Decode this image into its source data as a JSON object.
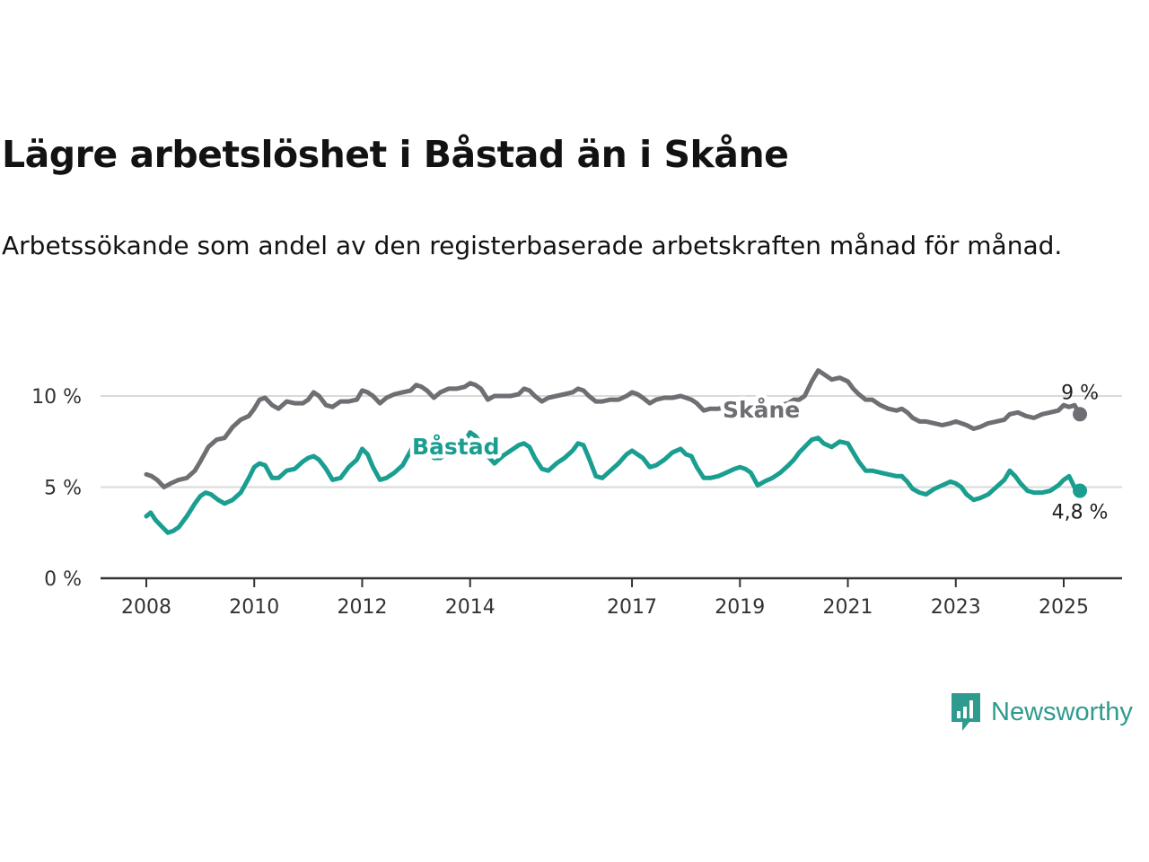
{
  "title": "Lägre arbetslöshet i Båstad än i Skåne",
  "subtitle": "Arbetssökande som andel av den registerbaserade arbetskraften månad för månad.",
  "brand": {
    "name": "Newsworthy",
    "icon": "bar-chart-speech-bubble-icon",
    "color": "#2f9a8e"
  },
  "colors": {
    "skane": "#6e6e73",
    "bastad": "#1a9e90",
    "grid": "#d9d9d9",
    "axis": "#333333"
  },
  "chart_data": {
    "type": "line",
    "title": "Lägre arbetslöshet i Båstad än i Skåne",
    "xlabel": "",
    "ylabel": "",
    "xlim": [
      2008,
      2025.4
    ],
    "ylim": [
      0,
      10
    ],
    "x_ticks": [
      {
        "value": 2008,
        "label": "2008"
      },
      {
        "value": 2010,
        "label": "2010"
      },
      {
        "value": 2012,
        "label": "2012"
      },
      {
        "value": 2014,
        "label": "2014"
      },
      {
        "value": 2017,
        "label": "2017"
      },
      {
        "value": 2019,
        "label": "2019"
      },
      {
        "value": 2021,
        "label": "2021"
      },
      {
        "value": 2023,
        "label": "2023"
      },
      {
        "value": 2025,
        "label": "2025"
      }
    ],
    "y_ticks": [
      {
        "value": 0,
        "label": "0 %"
      },
      {
        "value": 5,
        "label": "5 %"
      },
      {
        "value": 10,
        "label": "10 %"
      }
    ],
    "grid": true,
    "series": [
      {
        "name": "Skåne",
        "end_label": "9 %",
        "points": [
          [
            2008.0,
            5.7
          ],
          [
            2008.1,
            5.6
          ],
          [
            2008.2,
            5.4
          ],
          [
            2008.33,
            5.0
          ],
          [
            2008.45,
            5.2
          ],
          [
            2008.6,
            5.4
          ],
          [
            2008.75,
            5.5
          ],
          [
            2008.9,
            5.9
          ],
          [
            2009.0,
            6.4
          ],
          [
            2009.15,
            7.2
          ],
          [
            2009.3,
            7.6
          ],
          [
            2009.45,
            7.7
          ],
          [
            2009.6,
            8.3
          ],
          [
            2009.75,
            8.7
          ],
          [
            2009.9,
            8.9
          ],
          [
            2010.0,
            9.3
          ],
          [
            2010.1,
            9.8
          ],
          [
            2010.2,
            9.9
          ],
          [
            2010.33,
            9.5
          ],
          [
            2010.45,
            9.3
          ],
          [
            2010.6,
            9.7
          ],
          [
            2010.75,
            9.6
          ],
          [
            2010.9,
            9.6
          ],
          [
            2011.0,
            9.8
          ],
          [
            2011.1,
            10.2
          ],
          [
            2011.2,
            10.0
          ],
          [
            2011.33,
            9.5
          ],
          [
            2011.45,
            9.4
          ],
          [
            2011.6,
            9.7
          ],
          [
            2011.75,
            9.7
          ],
          [
            2011.9,
            9.8
          ],
          [
            2012.0,
            10.3
          ],
          [
            2012.1,
            10.2
          ],
          [
            2012.2,
            10.0
          ],
          [
            2012.33,
            9.6
          ],
          [
            2012.45,
            9.9
          ],
          [
            2012.6,
            10.1
          ],
          [
            2012.75,
            10.2
          ],
          [
            2012.9,
            10.3
          ],
          [
            2013.0,
            10.6
          ],
          [
            2013.1,
            10.5
          ],
          [
            2013.2,
            10.3
          ],
          [
            2013.33,
            9.9
          ],
          [
            2013.45,
            10.2
          ],
          [
            2013.6,
            10.4
          ],
          [
            2013.75,
            10.4
          ],
          [
            2013.9,
            10.5
          ],
          [
            2014.0,
            10.7
          ],
          [
            2014.1,
            10.6
          ],
          [
            2014.2,
            10.4
          ],
          [
            2014.33,
            9.8
          ],
          [
            2014.45,
            10.0
          ],
          [
            2014.6,
            10.0
          ],
          [
            2014.75,
            10.0
          ],
          [
            2014.9,
            10.1
          ],
          [
            2015.0,
            10.4
          ],
          [
            2015.1,
            10.3
          ],
          [
            2015.2,
            10.0
          ],
          [
            2015.33,
            9.7
          ],
          [
            2015.45,
            9.9
          ],
          [
            2015.6,
            10.0
          ],
          [
            2015.75,
            10.1
          ],
          [
            2015.9,
            10.2
          ],
          [
            2016.0,
            10.4
          ],
          [
            2016.1,
            10.3
          ],
          [
            2016.2,
            10.0
          ],
          [
            2016.33,
            9.7
          ],
          [
            2016.45,
            9.7
          ],
          [
            2016.6,
            9.8
          ],
          [
            2016.75,
            9.8
          ],
          [
            2016.9,
            10.0
          ],
          [
            2017.0,
            10.2
          ],
          [
            2017.1,
            10.1
          ],
          [
            2017.2,
            9.9
          ],
          [
            2017.33,
            9.6
          ],
          [
            2017.45,
            9.8
          ],
          [
            2017.6,
            9.9
          ],
          [
            2017.75,
            9.9
          ],
          [
            2017.9,
            10.0
          ],
          [
            2018.0,
            9.9
          ],
          [
            2018.1,
            9.8
          ],
          [
            2018.2,
            9.6
          ],
          [
            2018.33,
            9.2
          ],
          [
            2018.45,
            9.3
          ],
          [
            2018.6,
            9.3
          ],
          [
            2018.75,
            9.4
          ],
          [
            2018.9,
            9.5
          ],
          [
            2019.0,
            9.7
          ],
          [
            2019.1,
            9.6
          ],
          [
            2019.2,
            9.5
          ],
          [
            2019.33,
            9.2
          ],
          [
            2019.45,
            9.3
          ],
          [
            2019.6,
            9.4
          ],
          [
            2019.75,
            9.5
          ],
          [
            2019.9,
            9.6
          ],
          [
            2020.0,
            9.8
          ],
          [
            2020.1,
            9.8
          ],
          [
            2020.2,
            10.0
          ],
          [
            2020.33,
            10.8
          ],
          [
            2020.45,
            11.4
          ],
          [
            2020.55,
            11.2
          ],
          [
            2020.7,
            10.9
          ],
          [
            2020.85,
            11.0
          ],
          [
            2021.0,
            10.8
          ],
          [
            2021.1,
            10.4
          ],
          [
            2021.2,
            10.1
          ],
          [
            2021.33,
            9.8
          ],
          [
            2021.45,
            9.8
          ],
          [
            2021.6,
            9.5
          ],
          [
            2021.75,
            9.3
          ],
          [
            2021.9,
            9.2
          ],
          [
            2022.0,
            9.3
          ],
          [
            2022.1,
            9.1
          ],
          [
            2022.2,
            8.8
          ],
          [
            2022.33,
            8.6
          ],
          [
            2022.45,
            8.6
          ],
          [
            2022.6,
            8.5
          ],
          [
            2022.75,
            8.4
          ],
          [
            2022.9,
            8.5
          ],
          [
            2023.0,
            8.6
          ],
          [
            2023.1,
            8.5
          ],
          [
            2023.2,
            8.4
          ],
          [
            2023.33,
            8.2
          ],
          [
            2023.45,
            8.3
          ],
          [
            2023.6,
            8.5
          ],
          [
            2023.75,
            8.6
          ],
          [
            2023.9,
            8.7
          ],
          [
            2024.0,
            9.0
          ],
          [
            2024.15,
            9.1
          ],
          [
            2024.3,
            8.9
          ],
          [
            2024.45,
            8.8
          ],
          [
            2024.6,
            9.0
          ],
          [
            2024.75,
            9.1
          ],
          [
            2024.9,
            9.2
          ],
          [
            2025.0,
            9.5
          ],
          [
            2025.1,
            9.4
          ],
          [
            2025.2,
            9.5
          ],
          [
            2025.3,
            9.0
          ]
        ]
      },
      {
        "name": "Båstad",
        "end_label": "4,8 %",
        "points": [
          [
            2008.0,
            3.4
          ],
          [
            2008.08,
            3.6
          ],
          [
            2008.17,
            3.2
          ],
          [
            2008.3,
            2.8
          ],
          [
            2008.4,
            2.5
          ],
          [
            2008.5,
            2.6
          ],
          [
            2008.6,
            2.8
          ],
          [
            2008.75,
            3.4
          ],
          [
            2008.9,
            4.1
          ],
          [
            2009.0,
            4.5
          ],
          [
            2009.1,
            4.7
          ],
          [
            2009.2,
            4.6
          ],
          [
            2009.33,
            4.3
          ],
          [
            2009.45,
            4.1
          ],
          [
            2009.6,
            4.3
          ],
          [
            2009.75,
            4.7
          ],
          [
            2009.9,
            5.5
          ],
          [
            2010.0,
            6.1
          ],
          [
            2010.1,
            6.3
          ],
          [
            2010.2,
            6.2
          ],
          [
            2010.33,
            5.5
          ],
          [
            2010.45,
            5.5
          ],
          [
            2010.6,
            5.9
          ],
          [
            2010.75,
            6.0
          ],
          [
            2010.9,
            6.4
          ],
          [
            2011.0,
            6.6
          ],
          [
            2011.1,
            6.7
          ],
          [
            2011.2,
            6.5
          ],
          [
            2011.33,
            6.0
          ],
          [
            2011.45,
            5.4
          ],
          [
            2011.6,
            5.5
          ],
          [
            2011.75,
            6.1
          ],
          [
            2011.9,
            6.5
          ],
          [
            2012.0,
            7.1
          ],
          [
            2012.1,
            6.8
          ],
          [
            2012.2,
            6.1
          ],
          [
            2012.33,
            5.4
          ],
          [
            2012.45,
            5.5
          ],
          [
            2012.6,
            5.8
          ],
          [
            2012.75,
            6.2
          ],
          [
            2012.9,
            7.0
          ],
          [
            2013.0,
            7.6
          ],
          [
            2013.1,
            7.7
          ],
          [
            2013.2,
            7.2
          ],
          [
            2013.33,
            6.6
          ],
          [
            2013.45,
            6.6
          ],
          [
            2013.6,
            6.9
          ],
          [
            2013.75,
            7.1
          ],
          [
            2013.9,
            7.5
          ],
          [
            2014.0,
            8.0
          ],
          [
            2014.1,
            7.8
          ],
          [
            2014.2,
            7.4
          ],
          [
            2014.33,
            6.7
          ],
          [
            2014.45,
            6.3
          ],
          [
            2014.6,
            6.7
          ],
          [
            2014.75,
            7.0
          ],
          [
            2014.9,
            7.3
          ],
          [
            2015.0,
            7.4
          ],
          [
            2015.1,
            7.2
          ],
          [
            2015.2,
            6.6
          ],
          [
            2015.33,
            6.0
          ],
          [
            2015.45,
            5.9
          ],
          [
            2015.6,
            6.3
          ],
          [
            2015.75,
            6.6
          ],
          [
            2015.9,
            7.0
          ],
          [
            2016.0,
            7.4
          ],
          [
            2016.1,
            7.3
          ],
          [
            2016.2,
            6.6
          ],
          [
            2016.33,
            5.6
          ],
          [
            2016.45,
            5.5
          ],
          [
            2016.6,
            5.9
          ],
          [
            2016.75,
            6.3
          ],
          [
            2016.9,
            6.8
          ],
          [
            2017.0,
            7.0
          ],
          [
            2017.1,
            6.8
          ],
          [
            2017.2,
            6.6
          ],
          [
            2017.33,
            6.1
          ],
          [
            2017.45,
            6.2
          ],
          [
            2017.6,
            6.5
          ],
          [
            2017.75,
            6.9
          ],
          [
            2017.9,
            7.1
          ],
          [
            2018.0,
            6.8
          ],
          [
            2018.1,
            6.7
          ],
          [
            2018.2,
            6.1
          ],
          [
            2018.33,
            5.5
          ],
          [
            2018.45,
            5.5
          ],
          [
            2018.6,
            5.6
          ],
          [
            2018.75,
            5.8
          ],
          [
            2018.9,
            6.0
          ],
          [
            2019.0,
            6.1
          ],
          [
            2019.1,
            6.0
          ],
          [
            2019.2,
            5.8
          ],
          [
            2019.33,
            5.1
          ],
          [
            2019.45,
            5.3
          ],
          [
            2019.6,
            5.5
          ],
          [
            2019.75,
            5.8
          ],
          [
            2019.9,
            6.2
          ],
          [
            2020.0,
            6.5
          ],
          [
            2020.1,
            6.9
          ],
          [
            2020.2,
            7.2
          ],
          [
            2020.33,
            7.6
          ],
          [
            2020.45,
            7.7
          ],
          [
            2020.55,
            7.4
          ],
          [
            2020.7,
            7.2
          ],
          [
            2020.85,
            7.5
          ],
          [
            2021.0,
            7.4
          ],
          [
            2021.1,
            6.9
          ],
          [
            2021.2,
            6.4
          ],
          [
            2021.33,
            5.9
          ],
          [
            2021.45,
            5.9
          ],
          [
            2021.6,
            5.8
          ],
          [
            2021.75,
            5.7
          ],
          [
            2021.9,
            5.6
          ],
          [
            2022.0,
            5.6
          ],
          [
            2022.1,
            5.3
          ],
          [
            2022.2,
            4.9
          ],
          [
            2022.33,
            4.7
          ],
          [
            2022.45,
            4.6
          ],
          [
            2022.6,
            4.9
          ],
          [
            2022.75,
            5.1
          ],
          [
            2022.9,
            5.3
          ],
          [
            2023.0,
            5.2
          ],
          [
            2023.1,
            5.0
          ],
          [
            2023.2,
            4.6
          ],
          [
            2023.33,
            4.3
          ],
          [
            2023.45,
            4.4
          ],
          [
            2023.6,
            4.6
          ],
          [
            2023.75,
            5.0
          ],
          [
            2023.9,
            5.4
          ],
          [
            2024.0,
            5.9
          ],
          [
            2024.1,
            5.6
          ],
          [
            2024.2,
            5.2
          ],
          [
            2024.33,
            4.8
          ],
          [
            2024.45,
            4.7
          ],
          [
            2024.6,
            4.7
          ],
          [
            2024.75,
            4.8
          ],
          [
            2024.9,
            5.1
          ],
          [
            2025.0,
            5.4
          ],
          [
            2025.1,
            5.6
          ],
          [
            2025.2,
            5.0
          ],
          [
            2025.3,
            4.8
          ]
        ]
      }
    ]
  }
}
